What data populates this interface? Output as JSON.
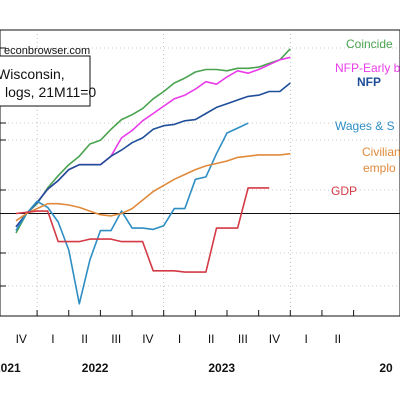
{
  "header": {
    "source": "econbrowser.com",
    "title_lines": [
      "Wisconsin,",
      "logs, 21M11=0"
    ]
  },
  "chart_data": {
    "type": "line",
    "title": "Wisconsin, logs, 21M11=0",
    "zero_line": true,
    "axis": {
      "quarter_labels": [
        "IV",
        "I",
        "II",
        "III",
        "IV",
        "I",
        "II",
        "III",
        "IV",
        "I",
        "II"
      ],
      "year_labels": [
        "2021",
        "2022",
        "2023",
        "20"
      ]
    },
    "series": [
      {
        "name": "Coincident",
        "label": "Coincide",
        "color": "#4aa350",
        "points": [
          [
            "2021-10",
            -0.8
          ],
          [
            "2021-11",
            0.0
          ],
          [
            "2021-12",
            0.4
          ],
          [
            "2022-01",
            1.05
          ],
          [
            "2022-02",
            1.55
          ],
          [
            "2022-03",
            2.0
          ],
          [
            "2022-04",
            2.35
          ],
          [
            "2022-05",
            2.85
          ],
          [
            "2022-06",
            3.0
          ],
          [
            "2022-07",
            3.45
          ],
          [
            "2022-08",
            3.85
          ],
          [
            "2022-09",
            4.05
          ],
          [
            "2022-10",
            4.3
          ],
          [
            "2022-11",
            4.7
          ],
          [
            "2022-12",
            5.0
          ],
          [
            "2023-01",
            5.35
          ],
          [
            "2023-02",
            5.55
          ],
          [
            "2023-03",
            5.8
          ],
          [
            "2023-04",
            5.9
          ],
          [
            "2023-05",
            5.9
          ],
          [
            "2023-06",
            5.85
          ],
          [
            "2023-07",
            5.95
          ],
          [
            "2023-08",
            5.95
          ],
          [
            "2023-09",
            6.0
          ],
          [
            "2023-10",
            6.15
          ],
          [
            "2023-11",
            6.3
          ],
          [
            "2023-12",
            6.75
          ]
        ]
      },
      {
        "name": "NFP-Early benchmark",
        "label": "NFP-Early b",
        "color": "#e83de8",
        "points": [
          [
            "2021-10",
            -0.55
          ],
          [
            "2021-11",
            0.0
          ],
          [
            "2021-12",
            0.45
          ],
          [
            "2022-01",
            1.0
          ],
          [
            "2022-02",
            1.35
          ],
          [
            "2022-03",
            1.8
          ],
          [
            "2022-04",
            2.0
          ],
          [
            "2022-05",
            2.0
          ],
          [
            "2022-06",
            2.0
          ],
          [
            "2022-07",
            2.35
          ],
          [
            "2022-08",
            3.1
          ],
          [
            "2022-09",
            3.4
          ],
          [
            "2022-10",
            3.8
          ],
          [
            "2022-11",
            4.1
          ],
          [
            "2022-12",
            4.4
          ],
          [
            "2023-01",
            4.7
          ],
          [
            "2023-02",
            4.85
          ],
          [
            "2023-03",
            5.1
          ],
          [
            "2023-04",
            5.4
          ],
          [
            "2023-05",
            5.3
          ],
          [
            "2023-06",
            5.6
          ],
          [
            "2023-07",
            5.85
          ],
          [
            "2023-08",
            5.75
          ],
          [
            "2023-09",
            5.9
          ],
          [
            "2023-10",
            6.1
          ],
          [
            "2023-11",
            6.3
          ],
          [
            "2023-12",
            6.4
          ]
        ]
      },
      {
        "name": "NFP",
        "label": "NFP",
        "color": "#1f4e99",
        "points": [
          [
            "2021-10",
            -0.55
          ],
          [
            "2021-11",
            0.0
          ],
          [
            "2021-12",
            0.45
          ],
          [
            "2022-01",
            1.0
          ],
          [
            "2022-02",
            1.35
          ],
          [
            "2022-03",
            1.8
          ],
          [
            "2022-04",
            2.0
          ],
          [
            "2022-05",
            2.0
          ],
          [
            "2022-06",
            2.0
          ],
          [
            "2022-07",
            2.35
          ],
          [
            "2022-08",
            2.6
          ],
          [
            "2022-09",
            2.9
          ],
          [
            "2022-10",
            3.1
          ],
          [
            "2022-11",
            3.45
          ],
          [
            "2022-12",
            3.6
          ],
          [
            "2023-01",
            3.65
          ],
          [
            "2023-02",
            3.8
          ],
          [
            "2023-03",
            3.85
          ],
          [
            "2023-04",
            4.1
          ],
          [
            "2023-05",
            4.35
          ],
          [
            "2023-06",
            4.5
          ],
          [
            "2023-07",
            4.65
          ],
          [
            "2023-08",
            4.8
          ],
          [
            "2023-09",
            4.85
          ],
          [
            "2023-10",
            5.0
          ],
          [
            "2023-11",
            5.0
          ],
          [
            "2023-12",
            5.35
          ]
        ]
      },
      {
        "name": "Wages & Salaries",
        "label": "Wages & S",
        "color": "#2e8ec4",
        "points": [
          [
            "2021-10",
            -0.7
          ],
          [
            "2021-11",
            0.0
          ],
          [
            "2021-12",
            0.5
          ],
          [
            "2022-01",
            0.25
          ],
          [
            "2022-02",
            -0.35
          ],
          [
            "2022-03",
            -1.5
          ],
          [
            "2022-04",
            -3.7
          ],
          [
            "2022-05",
            -1.9
          ],
          [
            "2022-06",
            -0.7
          ],
          [
            "2022-07",
            -0.7
          ],
          [
            "2022-08",
            0.1
          ],
          [
            "2022-09",
            -0.6
          ],
          [
            "2022-10",
            -0.6
          ],
          [
            "2022-11",
            -0.65
          ],
          [
            "2022-12",
            -0.5
          ],
          [
            "2023-01",
            0.2
          ],
          [
            "2023-02",
            0.2
          ],
          [
            "2023-03",
            1.4
          ],
          [
            "2023-04",
            1.5
          ],
          [
            "2023-05",
            2.45
          ],
          [
            "2023-06",
            3.3
          ],
          [
            "2023-07",
            3.5
          ],
          [
            "2023-08",
            3.7
          ]
        ]
      },
      {
        "name": "Civilian employment",
        "label": "Civilian",
        "label2": "emplo",
        "color": "#e08a3c",
        "points": [
          [
            "2021-10",
            -0.3
          ],
          [
            "2021-11",
            0.0
          ],
          [
            "2021-12",
            0.2
          ],
          [
            "2022-01",
            0.4
          ],
          [
            "2022-02",
            0.4
          ],
          [
            "2022-03",
            0.35
          ],
          [
            "2022-04",
            0.25
          ],
          [
            "2022-05",
            0.1
          ],
          [
            "2022-06",
            -0.05
          ],
          [
            "2022-07",
            -0.1
          ],
          [
            "2022-08",
            0.0
          ],
          [
            "2022-09",
            0.2
          ],
          [
            "2022-10",
            0.55
          ],
          [
            "2022-11",
            0.9
          ],
          [
            "2022-12",
            1.15
          ],
          [
            "2023-01",
            1.4
          ],
          [
            "2023-02",
            1.6
          ],
          [
            "2023-03",
            1.8
          ],
          [
            "2023-04",
            1.95
          ],
          [
            "2023-05",
            2.05
          ],
          [
            "2023-06",
            2.15
          ],
          [
            "2023-07",
            2.3
          ],
          [
            "2023-08",
            2.35
          ],
          [
            "2023-09",
            2.4
          ],
          [
            "2023-10",
            2.4
          ],
          [
            "2023-11",
            2.4
          ],
          [
            "2023-12",
            2.45
          ]
        ]
      },
      {
        "name": "GDP",
        "label": "GDP",
        "color": "#d43a45",
        "points": [
          [
            "2021-10",
            0.0
          ],
          [
            "2021-12",
            0.1
          ],
          [
            "2022-01",
            0.1
          ],
          [
            "2022-02",
            -1.15
          ],
          [
            "2022-04",
            -1.15
          ],
          [
            "2022-05",
            -1.05
          ],
          [
            "2022-07",
            -1.05
          ],
          [
            "2022-08",
            -1.15
          ],
          [
            "2022-10",
            -1.15
          ],
          [
            "2022-11",
            -2.35
          ],
          [
            "2023-01",
            -2.35
          ],
          [
            "2023-02",
            -2.4
          ],
          [
            "2023-04",
            -2.4
          ],
          [
            "2023-05",
            -0.6
          ],
          [
            "2023-07",
            -0.6
          ],
          [
            "2023-08",
            1.05
          ],
          [
            "2023-10",
            1.05
          ]
        ]
      }
    ]
  }
}
